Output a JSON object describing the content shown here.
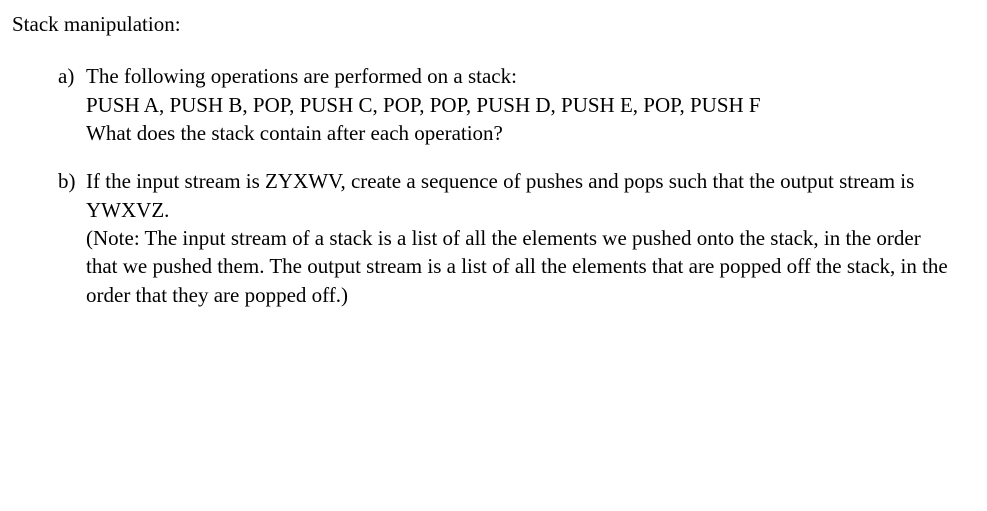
{
  "heading": "Stack manipulation:",
  "items": [
    {
      "marker": "a)",
      "lines": [
        "The following operations are performed on a stack:",
        "PUSH A, PUSH B, POP, PUSH C, POP, POP, PUSH D, PUSH E, POP, PUSH F",
        "What does the stack contain after each operation?"
      ]
    },
    {
      "marker": "b)",
      "lines": [
        "If the input stream is ZYXWV, create a sequence of pushes and pops such that the output stream is YWXVZ.",
        "(Note: The input stream of a stack is a list of all the elements we pushed onto the stack, in the order that we pushed them. The output stream is a list of all the elements that are popped off the stack, in the order that they are popped off.)"
      ]
    }
  ]
}
